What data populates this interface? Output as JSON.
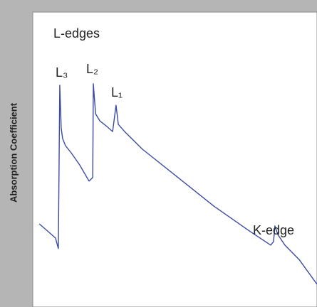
{
  "chart_data": {
    "type": "line",
    "y_label": "Absorption Coefficient",
    "annotations": [
      "L-edges",
      "L₃",
      "L₂",
      "L₁",
      "K-edge"
    ],
    "x": [
      2.3,
      8.0,
      9.0,
      9.5,
      10.0,
      10.5,
      11.5,
      13.5,
      16.5,
      19.8,
      21.1,
      21.3,
      22.1,
      23.6,
      26.1,
      28.1,
      29.3,
      30.1,
      32.3,
      38.6,
      51.1,
      63.7,
      76.2,
      83.7,
      84.7,
      85.2,
      86.2,
      88.7,
      93.7,
      100
    ],
    "values": [
      28.2,
      23.4,
      19.8,
      75.2,
      60.7,
      57.1,
      54.7,
      52.3,
      48.2,
      42.7,
      43.9,
      75.7,
      65.5,
      63.1,
      61.2,
      59.5,
      68.4,
      61.9,
      59.5,
      53.5,
      43.9,
      34.2,
      25.8,
      21.0,
      22.2,
      27.5,
      24.6,
      21.0,
      16.1,
      7.7
    ],
    "color": "#3b4ba3",
    "xlim": [
      0,
      100
    ],
    "ylim": [
      0,
      100
    ]
  }
}
